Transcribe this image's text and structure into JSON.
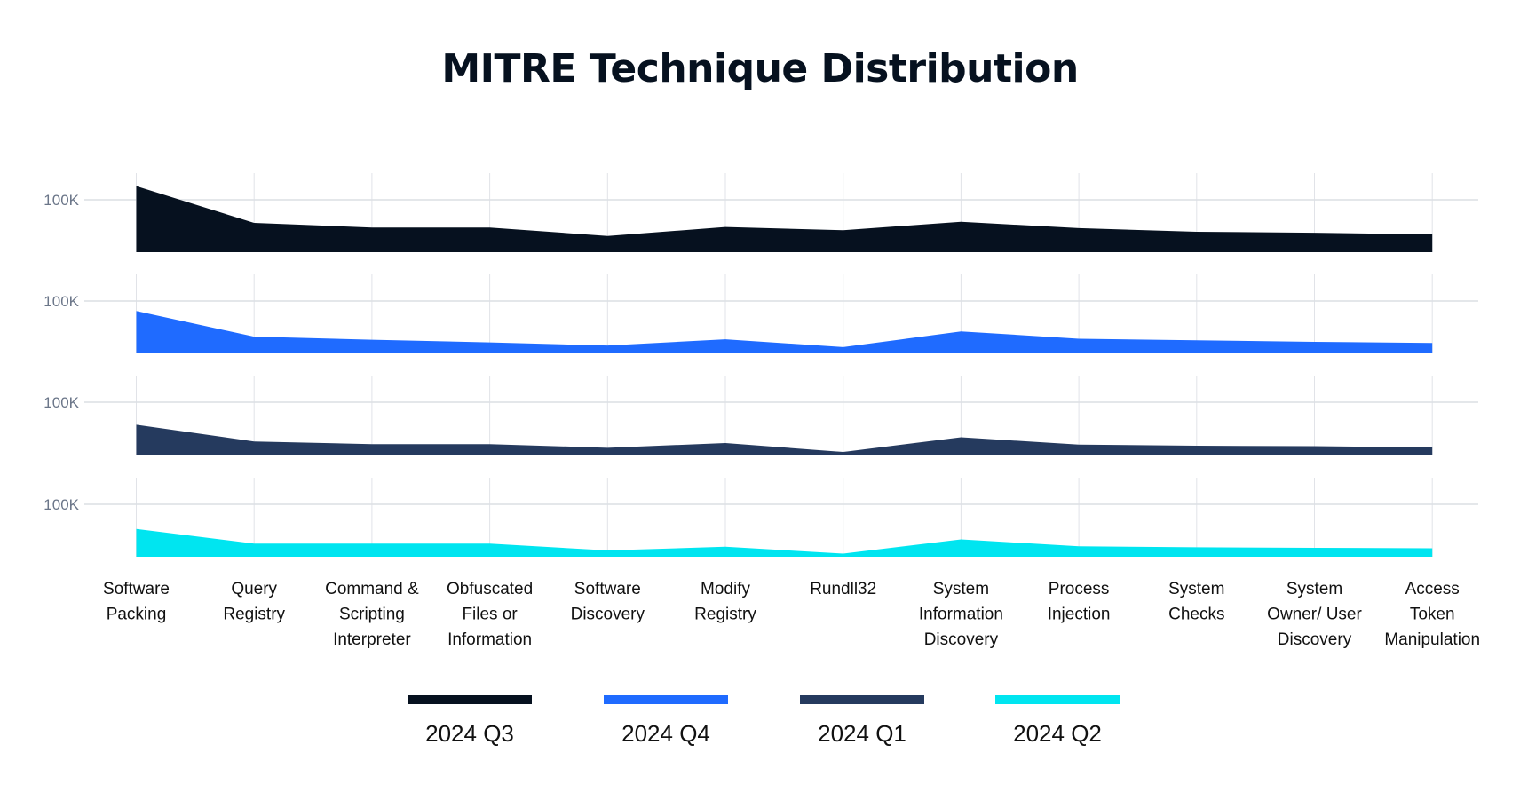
{
  "chart_data": {
    "type": "area",
    "title": "MITRE Technique Distribution",
    "layout": "small-multiples, one panel per series, stacked vertically",
    "categories": [
      [
        "Software",
        "Packing"
      ],
      [
        "Query",
        "Registry"
      ],
      [
        "Command &",
        "Scripting",
        "Interpreter"
      ],
      [
        "Obfuscated",
        "Files or",
        "Information"
      ],
      [
        "Software",
        "Discovery"
      ],
      [
        "Modify",
        "Registry"
      ],
      [
        "Rundll32"
      ],
      [
        "System",
        "Information",
        "Discovery"
      ],
      [
        "Process",
        "Injection"
      ],
      [
        "System",
        "Checks"
      ],
      [
        "System",
        "Owner/ User",
        "Discovery"
      ],
      [
        "Access",
        "Token",
        "Manipulation"
      ]
    ],
    "y_tick_label": "100K",
    "y_tick_value": 100000,
    "grid": true,
    "legend_position": "bottom",
    "series": [
      {
        "name": "2024 Q3",
        "color": "#06111f",
        "values": [
          126000,
          56000,
          47000,
          47000,
          31000,
          48000,
          42000,
          58000,
          46000,
          39000,
          37000,
          34000
        ]
      },
      {
        "name": "2024 Q4",
        "color": "#1f6bff",
        "values": [
          81000,
          32000,
          26000,
          21000,
          15000,
          27000,
          12000,
          42000,
          28000,
          25000,
          22000,
          20000
        ]
      },
      {
        "name": "2024 Q1",
        "color": "#253a5e",
        "values": [
          57000,
          25000,
          20000,
          20000,
          13000,
          22000,
          5000,
          33000,
          19000,
          17000,
          16000,
          14000
        ]
      },
      {
        "name": "2024 Q2",
        "color": "#00e5f0",
        "values": [
          53000,
          25000,
          25000,
          25000,
          12000,
          19000,
          6000,
          33000,
          20000,
          18000,
          17000,
          16000
        ]
      }
    ]
  }
}
